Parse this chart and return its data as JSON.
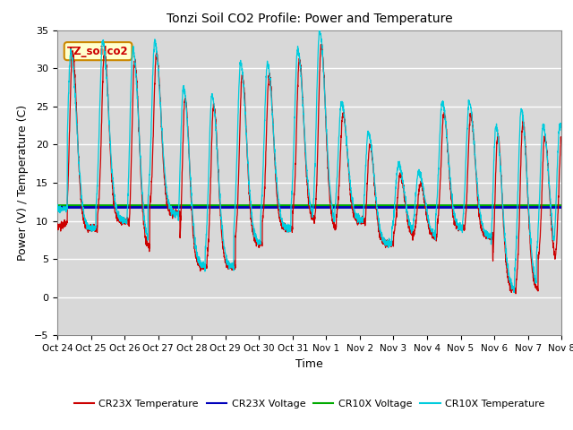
{
  "title": "Tonzi Soil CO2 Profile: Power and Temperature",
  "xlabel": "Time",
  "ylabel": "Power (V) / Temperature (C)",
  "xlim": [
    0,
    15
  ],
  "ylim": [
    -5,
    35
  ],
  "yticks": [
    -5,
    0,
    5,
    10,
    15,
    20,
    25,
    30,
    35
  ],
  "xtick_labels": [
    "Oct 24",
    "Oct 25",
    "Oct 26",
    "Oct 27",
    "Oct 28",
    "Oct 29",
    "Oct 30",
    "Oct 31",
    "Nov 1",
    "Nov 2",
    "Nov 3",
    "Nov 4",
    "Nov 5",
    "Nov 6",
    "Nov 7",
    "Nov 8"
  ],
  "cr23x_voltage_value": 11.85,
  "cr10x_voltage_value": 12.05,
  "annotation_text": "TZ_soilco2",
  "bg_color": "#d8d8d8",
  "cr23x_temp_color": "#cc0000",
  "cr23x_voltage_color": "#0000bb",
  "cr10x_voltage_color": "#00aa00",
  "cr10x_temp_color": "#00ccdd",
  "legend_labels": [
    "CR23X Temperature",
    "CR23X Voltage",
    "CR10X Voltage",
    "CR10X Temperature"
  ]
}
